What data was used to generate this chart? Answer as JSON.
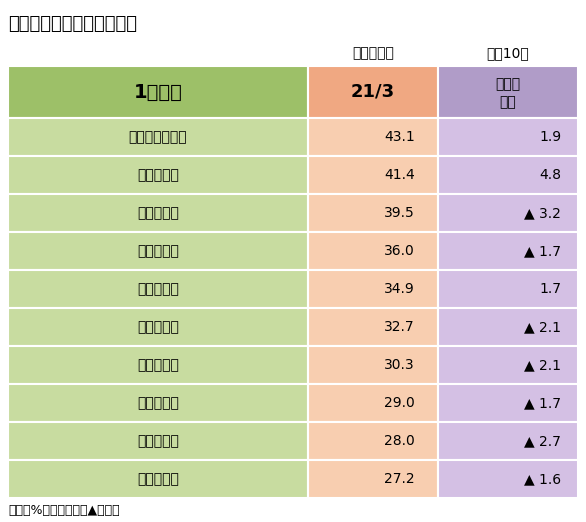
{
  "title": "地域銀の貸出金残存期間別",
  "subtitle_left": "残高構成比",
  "subtitle_right": "上位10行",
  "col1_header": "1年以下",
  "col2_header": "21/3",
  "col3_header_line1": "前年比",
  "col3_header_line2": "差引",
  "banks": [
    "十　八　親　和",
    "熊　　　本",
    "百　十　四",
    "北　　　陸",
    "佐　　　賀",
    "東　　　邦",
    "福　　　岡",
    "北　海　道",
    "北　九　州",
    "阿　　　波"
  ],
  "values": [
    "43.1",
    "41.4",
    "39.5",
    "36.0",
    "34.9",
    "32.7",
    "30.3",
    "29.0",
    "28.0",
    "27.2"
  ],
  "changes": [
    "1.9",
    "4.8",
    "▲ 3.2",
    "▲ 1.7",
    "1.7",
    "▲ 2.1",
    "▲ 2.1",
    "▲ 1.7",
    "▲ 2.7",
    "▲ 1.6"
  ],
  "header_col1_bg": "#9dc068",
  "header_col2_bg": "#f0a882",
  "header_col3_bg": "#b09cc8",
  "row_col1_bg": "#c8dca0",
  "row_col2_bg": "#f8ceb0",
  "row_col3_bg": "#d4c0e4",
  "border_color": "#ffffff",
  "footer": "単位：%、ポイント、▲は低下",
  "fig_width": 5.86,
  "fig_height": 5.22,
  "dpi": 100
}
